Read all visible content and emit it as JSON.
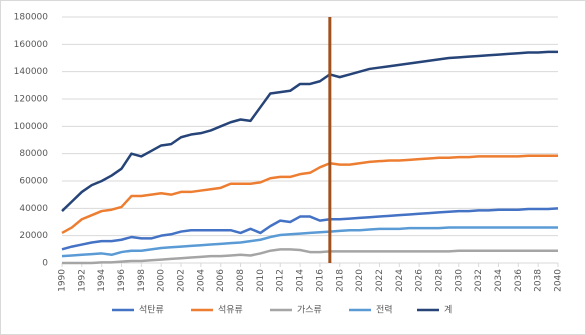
{
  "chart_data": {
    "type": "line",
    "x": [
      1990,
      1991,
      1992,
      1993,
      1994,
      1995,
      1996,
      1997,
      1998,
      1999,
      2000,
      2001,
      2002,
      2003,
      2004,
      2005,
      2006,
      2007,
      2008,
      2009,
      2010,
      2011,
      2012,
      2013,
      2014,
      2015,
      2016,
      2017,
      2018,
      2019,
      2020,
      2021,
      2022,
      2023,
      2024,
      2025,
      2026,
      2027,
      2028,
      2029,
      2030,
      2031,
      2032,
      2033,
      2034,
      2035,
      2036,
      2037,
      2038,
      2039,
      2040
    ],
    "series": [
      {
        "name": "석탄류",
        "color": "#4472c4",
        "values": [
          10000,
          12000,
          13500,
          15000,
          16000,
          16000,
          17000,
          19000,
          18000,
          18000,
          20000,
          21000,
          23000,
          24000,
          24000,
          24000,
          24000,
          24000,
          22000,
          25000,
          22000,
          27000,
          31000,
          30000,
          34000,
          34000,
          31000,
          32000,
          32000,
          32500,
          33000,
          33500,
          34000,
          34500,
          35000,
          35500,
          36000,
          36500,
          37000,
          37500,
          38000,
          38000,
          38500,
          38500,
          39000,
          39000,
          39000,
          39500,
          39500,
          39500,
          40000
        ]
      },
      {
        "name": "석유류",
        "color": "#ed7d31",
        "values": [
          22000,
          26000,
          32000,
          35000,
          38000,
          39000,
          41000,
          49000,
          49000,
          50000,
          51000,
          50000,
          52000,
          52000,
          53000,
          54000,
          55000,
          58000,
          58000,
          58000,
          59000,
          62000,
          63000,
          63000,
          65000,
          66000,
          70000,
          73000,
          72000,
          72000,
          73000,
          74000,
          74500,
          75000,
          75000,
          75500,
          76000,
          76500,
          77000,
          77000,
          77500,
          77500,
          78000,
          78000,
          78000,
          78000,
          78000,
          78500,
          78500,
          78500,
          78500
        ]
      },
      {
        "name": "가스류",
        "color": "#a5a5a5",
        "values": [
          0,
          0,
          0,
          0,
          500,
          500,
          1000,
          1500,
          1500,
          2000,
          2500,
          3000,
          3500,
          4000,
          4500,
          5000,
          5000,
          5500,
          6000,
          5500,
          7000,
          9000,
          10000,
          10000,
          9500,
          8000,
          8000,
          8500,
          8500,
          8500,
          8500,
          8500,
          8500,
          8500,
          8500,
          8500,
          8500,
          8500,
          8500,
          8500,
          9000,
          9000,
          9000,
          9000,
          9000,
          9000,
          9000,
          9000,
          9000,
          9000,
          9000
        ]
      },
      {
        "name": "전력",
        "color": "#5b9bd5",
        "values": [
          5000,
          5500,
          6000,
          6500,
          7000,
          6000,
          8000,
          9000,
          9000,
          10000,
          11000,
          11500,
          12000,
          12500,
          13000,
          13500,
          14000,
          14500,
          15000,
          16000,
          17000,
          19000,
          20500,
          21000,
          21500,
          22000,
          22500,
          23000,
          23500,
          24000,
          24000,
          24500,
          25000,
          25000,
          25000,
          25500,
          25500,
          25500,
          25500,
          26000,
          26000,
          26000,
          26000,
          26000,
          26000,
          26000,
          26000,
          26000,
          26000,
          26000,
          26000
        ]
      },
      {
        "name": "계",
        "color": "#264478",
        "values": [
          38000,
          45000,
          52000,
          57000,
          60000,
          64000,
          69000,
          80000,
          78000,
          82000,
          86000,
          87000,
          92000,
          94000,
          95000,
          97000,
          100000,
          103000,
          105000,
          104000,
          114000,
          124000,
          125000,
          126000,
          131000,
          131000,
          133000,
          138000,
          136000,
          138000,
          140000,
          142000,
          143000,
          144000,
          145000,
          146000,
          147000,
          148000,
          149000,
          150000,
          150500,
          151000,
          151500,
          152000,
          152500,
          153000,
          153500,
          154000,
          154000,
          154500,
          154500
        ]
      }
    ],
    "xlim": [
      1990,
      2040
    ],
    "xticks": [
      1990,
      1992,
      1994,
      1996,
      1998,
      2000,
      2002,
      2004,
      2006,
      2008,
      2010,
      2012,
      2014,
      2016,
      2018,
      2020,
      2022,
      2024,
      2026,
      2028,
      2030,
      2032,
      2034,
      2036,
      2038,
      2040
    ],
    "ylim": [
      0,
      180000
    ],
    "yticks": [
      0,
      20000,
      40000,
      60000,
      80000,
      100000,
      120000,
      140000,
      160000,
      180000
    ],
    "grid": true,
    "marker_x": 2017,
    "marker_color": "#a0521e",
    "legend": "bottom"
  }
}
